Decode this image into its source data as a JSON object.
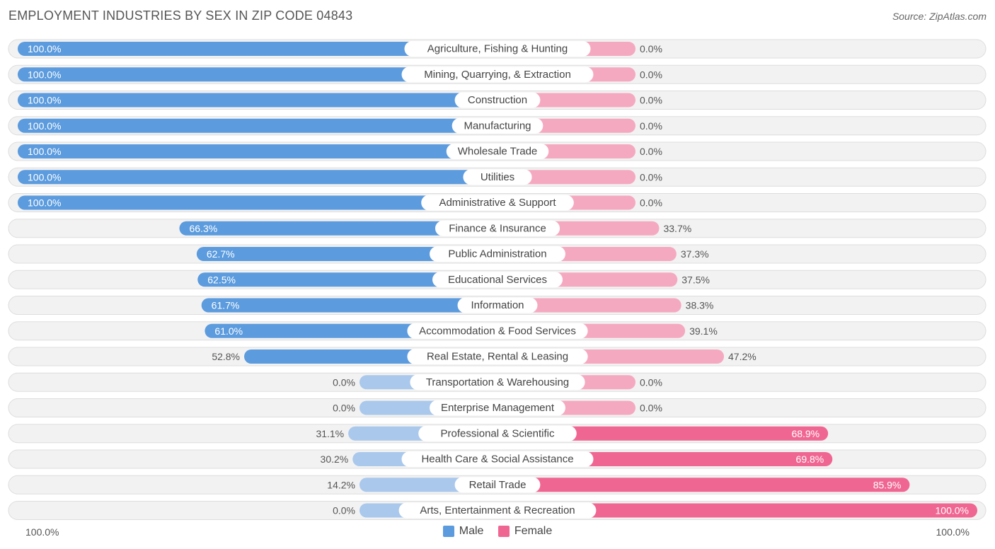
{
  "header": {
    "title": "EMPLOYMENT INDUSTRIES BY SEX IN ZIP CODE 04843",
    "source": "Source: ZipAtlas.com"
  },
  "axis": {
    "left_label": "100.0%",
    "right_label": "100.0%"
  },
  "legend": {
    "male_label": "Male",
    "female_label": "Female"
  },
  "colors": {
    "male_strong": "#5b9bde",
    "male_light": "#a9c8ec",
    "female_strong": "#f06692",
    "female_light": "#f5a9c0",
    "track": "#f2f2f2",
    "track_border": "#dddddd"
  },
  "chart_data": {
    "type": "bar",
    "orientation": "horizontal-diverging",
    "title": "EMPLOYMENT INDUSTRIES BY SEX IN ZIP CODE 04843",
    "xlim": [
      0,
      100
    ],
    "categories": [
      "Agriculture, Fishing & Hunting",
      "Mining, Quarrying, & Extraction",
      "Construction",
      "Manufacturing",
      "Wholesale Trade",
      "Utilities",
      "Administrative & Support",
      "Finance & Insurance",
      "Public Administration",
      "Educational Services",
      "Information",
      "Accommodation & Food Services",
      "Real Estate, Rental & Leasing",
      "Transportation & Warehousing",
      "Enterprise Management",
      "Professional & Scientific",
      "Health Care & Social Assistance",
      "Retail Trade",
      "Arts, Entertainment & Recreation"
    ],
    "series": [
      {
        "name": "Male",
        "values": [
          100.0,
          100.0,
          100.0,
          100.0,
          100.0,
          100.0,
          100.0,
          66.3,
          62.7,
          62.5,
          61.7,
          61.0,
          52.8,
          0.0,
          0.0,
          31.1,
          30.2,
          14.2,
          0.0
        ]
      },
      {
        "name": "Female",
        "values": [
          0.0,
          0.0,
          0.0,
          0.0,
          0.0,
          0.0,
          0.0,
          33.7,
          37.3,
          37.5,
          38.3,
          39.1,
          47.2,
          0.0,
          0.0,
          68.9,
          69.8,
          85.9,
          100.0
        ]
      }
    ],
    "male_labels": [
      "100.0%",
      "100.0%",
      "100.0%",
      "100.0%",
      "100.0%",
      "100.0%",
      "100.0%",
      "66.3%",
      "62.7%",
      "62.5%",
      "61.7%",
      "61.0%",
      "52.8%",
      "0.0%",
      "0.0%",
      "31.1%",
      "30.2%",
      "14.2%",
      "0.0%"
    ],
    "female_labels": [
      "0.0%",
      "0.0%",
      "0.0%",
      "0.0%",
      "0.0%",
      "0.0%",
      "0.0%",
      "33.7%",
      "37.3%",
      "37.5%",
      "38.3%",
      "39.1%",
      "47.2%",
      "0.0%",
      "0.0%",
      "68.9%",
      "69.8%",
      "85.9%",
      "100.0%"
    ]
  }
}
